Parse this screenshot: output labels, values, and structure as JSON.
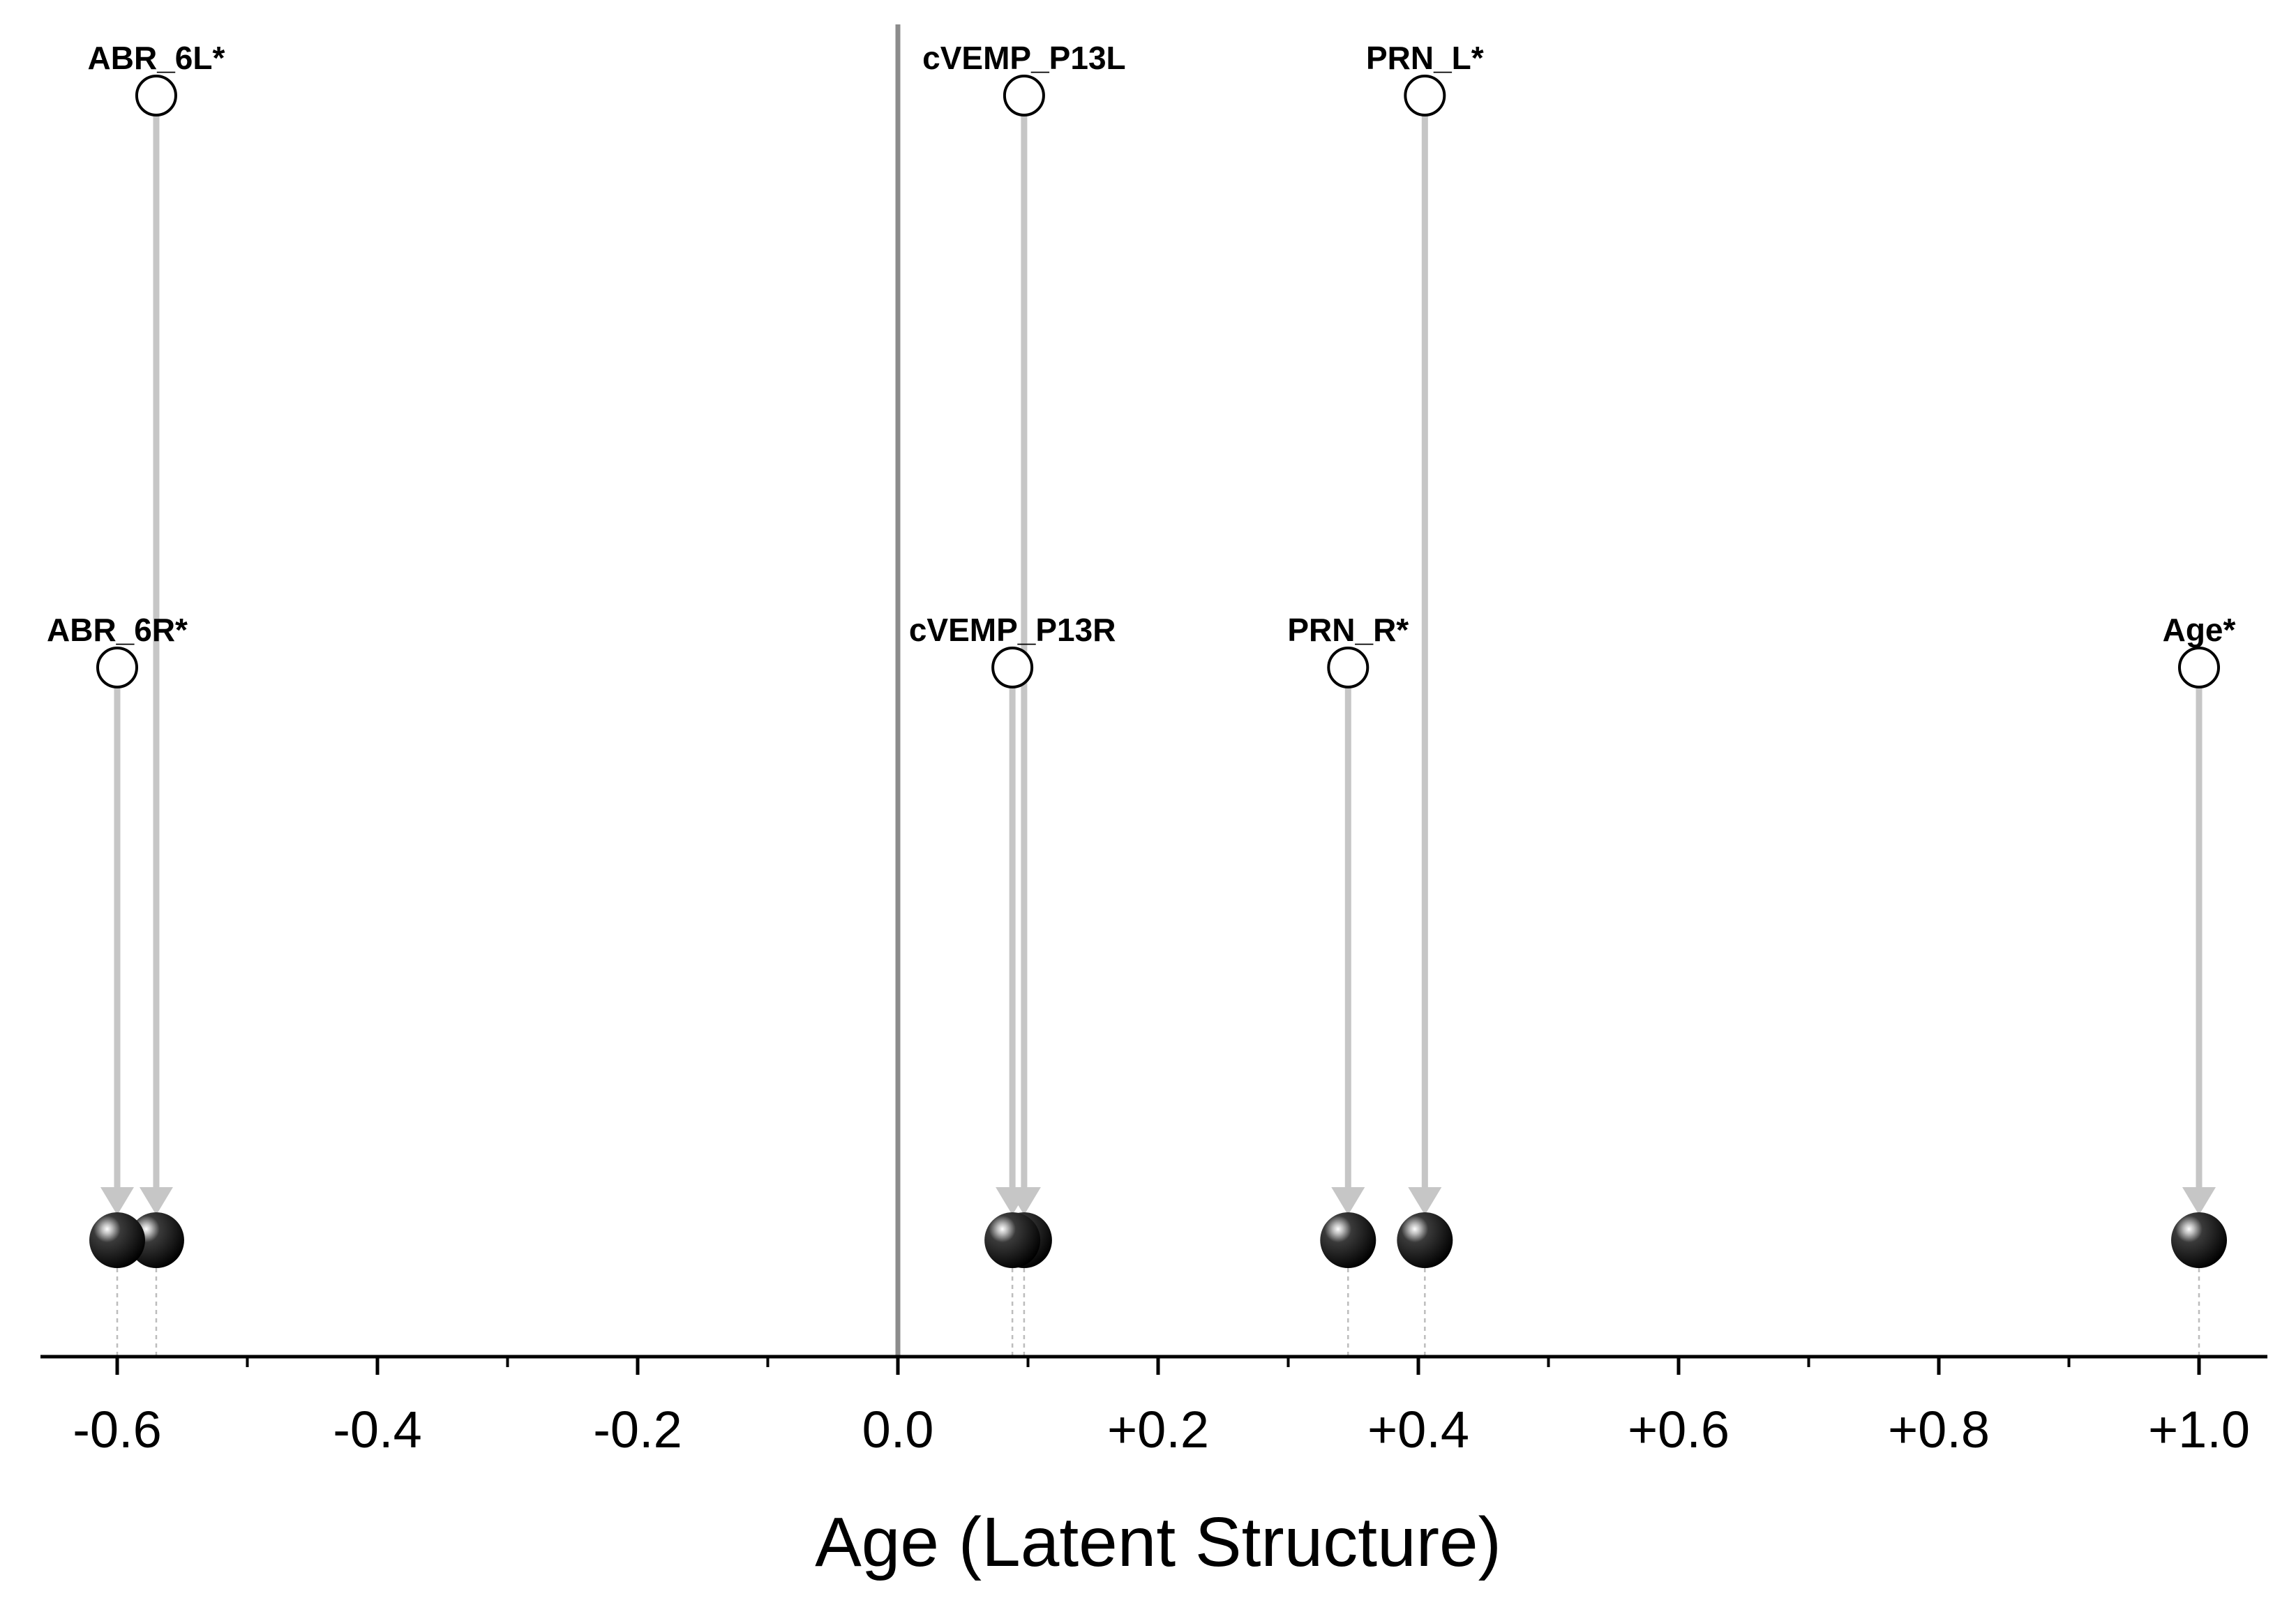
{
  "chart_data": {
    "type": "scatter",
    "title": "",
    "xlabel": "Age (Latent Structure)",
    "ylabel": "",
    "xlim": [
      -0.66,
      1.05
    ],
    "x_ticks": [
      {
        "value": -0.6,
        "label": "-0.6"
      },
      {
        "value": -0.4,
        "label": "-0.4"
      },
      {
        "value": -0.2,
        "label": "-0.2"
      },
      {
        "value": 0.0,
        "label": "0.0"
      },
      {
        "value": 0.2,
        "label": "+0.2"
      },
      {
        "value": 0.4,
        "label": "+0.4"
      },
      {
        "value": 0.6,
        "label": "+0.6"
      },
      {
        "value": 0.8,
        "label": "+0.8"
      },
      {
        "value": 1.0,
        "label": "+1.0"
      }
    ],
    "minor_ticks": [
      -0.5,
      -0.3,
      -0.1,
      0.1,
      0.3,
      0.5,
      0.7,
      0.9
    ],
    "reference_line_x": 0.0,
    "grid": false,
    "variables": [
      {
        "label": "ABR_6L*",
        "value": -0.57,
        "row": "upper"
      },
      {
        "label": "ABR_6R*",
        "value": -0.6,
        "row": "middle"
      },
      {
        "label": "cVEMP_P13L",
        "value": 0.097,
        "row": "upper"
      },
      {
        "label": "cVEMP_P13R",
        "value": 0.088,
        "row": "middle"
      },
      {
        "label": "PRN_L*",
        "value": 0.405,
        "row": "upper"
      },
      {
        "label": "PRN_R*",
        "value": 0.346,
        "row": "middle"
      },
      {
        "label": "Age*",
        "value": 1.0,
        "row": "middle"
      }
    ]
  }
}
